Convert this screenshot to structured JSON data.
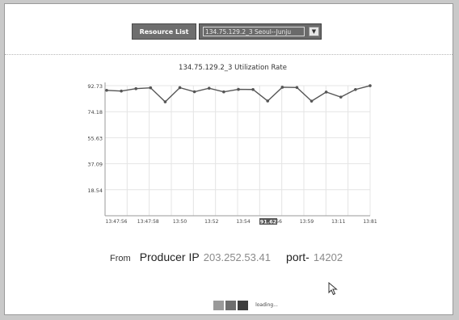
{
  "toolbar": {
    "resource_label": "Resource List",
    "resource_selected": "134.75.129.2_3 Seoul--Junju"
  },
  "chart_data": {
    "type": "line",
    "title": "134.75.129.2_3 Utilization Rate",
    "yticks": [
      "92.73",
      "74.18",
      "55.63",
      "37.09",
      "18.54"
    ],
    "ylim": [
      0,
      92.73
    ],
    "xticks": [
      "13:47:56",
      "13:47:58",
      "13:50",
      "13:52",
      "13:54",
      "13:56",
      "13:59",
      "13:11",
      "13:81"
    ],
    "highlight_label": "91.62",
    "grid": true,
    "series": [
      {
        "values": [
          89.4,
          88.9,
          90.6,
          91.2,
          81.2,
          91.3,
          88.4,
          90.9,
          88.3,
          90.1,
          90.0,
          81.8,
          91.6,
          91.4,
          81.7,
          88.2,
          84.6,
          90.0,
          92.7
        ]
      }
    ]
  },
  "producer": {
    "from_label": "From",
    "ip_label": "Producer IP",
    "ip_value": "203.252.53.41",
    "port_label": "port-",
    "port_value": "14202"
  },
  "loading": {
    "text": "loading...",
    "block_colors": [
      "#9a9a9a",
      "#6e6e6e",
      "#3e3e3e"
    ]
  },
  "colors": {
    "line": "#555555",
    "grid": "#e4e4e4",
    "axis": "#9a9a9a"
  }
}
